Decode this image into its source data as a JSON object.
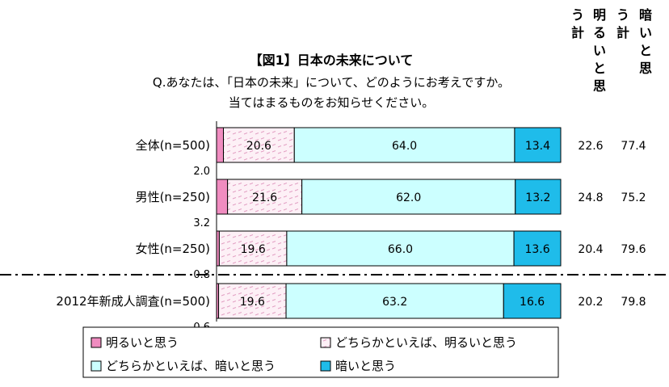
{
  "chart_data": {
    "type": "bar",
    "orientation": "horizontal",
    "stacked": true,
    "title": "【図1】日本の未来について",
    "question": [
      "Q.あなたは、「日本の未来」について、どのようにお考えですか。",
      "当てはまるものをお知らせください。"
    ],
    "categories": [
      "全体(n=500)",
      "男性(n=250)",
      "女性(n=250)",
      "2012年新成人調査(n=500)"
    ],
    "series": [
      {
        "name": "明るいと思う",
        "values": [
          2.0,
          3.2,
          0.8,
          0.6
        ],
        "color": "#f08cc0"
      },
      {
        "name": "どちらかといえば、明るいと思う",
        "values": [
          20.6,
          21.6,
          19.6,
          19.6
        ],
        "color": "#fdf0f6"
      },
      {
        "name": "どちらかといえば、暗いと思う",
        "values": [
          64.0,
          62.0,
          66.0,
          63.2
        ],
        "color": "#ccffff"
      },
      {
        "name": "暗いと思う",
        "values": [
          13.4,
          13.2,
          13.6,
          16.6
        ],
        "color": "#1fbcea"
      }
    ],
    "bright_total_label": "明るいと思う計",
    "dark_total_label": "暗いと思う計",
    "bright_totals": [
      "22.6",
      "24.8",
      "20.4",
      "20.2"
    ],
    "dark_totals": [
      "77.4",
      "75.2",
      "79.6",
      "79.8"
    ],
    "xlim": [
      0,
      100
    ],
    "legend_position": "bottom",
    "grid": false
  }
}
